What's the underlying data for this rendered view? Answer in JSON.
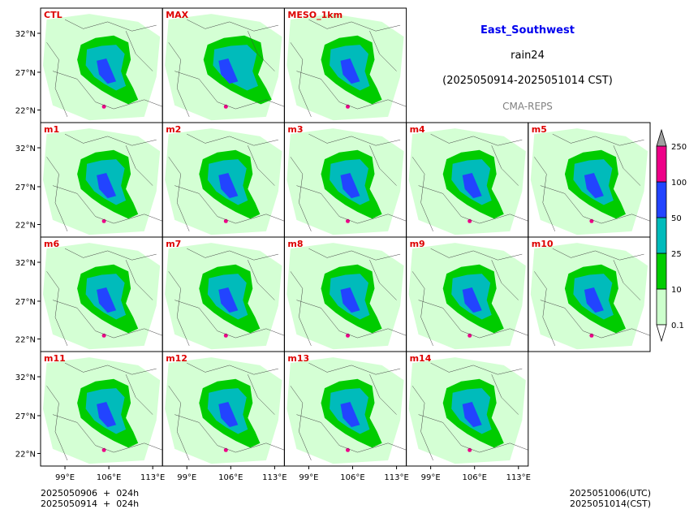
{
  "titles": {
    "region": "East_Southwest",
    "variable": "rain24",
    "period": "(2025050914-2025051014 CST)",
    "model": "CMA-REPS"
  },
  "footer": {
    "init_utc": "2025050906  +  024h",
    "init_cst": "2025050914  +  024h",
    "valid_utc": "2025051006(UTC)",
    "valid_cst": "2025051014(CST)"
  },
  "chart_data": {
    "type": "heatmap",
    "panels": [
      [
        "CTL",
        "MAX",
        "MESO_1km",
        null,
        null
      ],
      [
        "m1",
        "m2",
        "m3",
        "m4",
        "m5"
      ],
      [
        "m6",
        "m7",
        "m8",
        "m9",
        "m10"
      ],
      [
        "m11",
        "m12",
        "m13",
        "m14",
        null
      ]
    ],
    "xticks": [
      "99°E",
      "106°E",
      "113°E"
    ],
    "yticks": [
      "32°N",
      "27°N",
      "22°N"
    ],
    "colorbar": {
      "levels": [
        "0.1",
        "10",
        "25",
        "50",
        "100",
        "250"
      ],
      "colors": [
        "#ccffcc",
        "#00cc00",
        "#00bbbb",
        "#2244ff",
        "#ee0088"
      ],
      "extend_max_color": "#a0a0a0"
    }
  }
}
